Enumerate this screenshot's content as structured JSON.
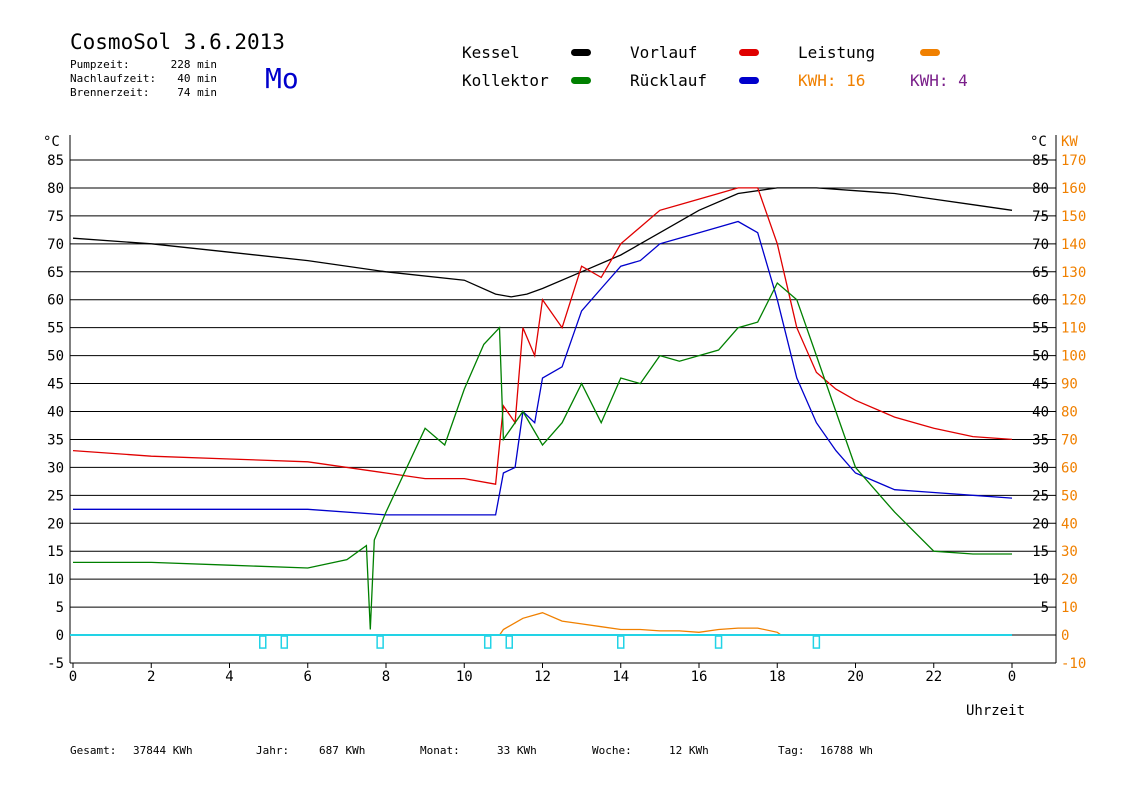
{
  "header": {
    "title": "CosmoSol 3.6.2013",
    "day": "Mo",
    "stats": [
      {
        "label": "Pumpzeit:",
        "value": "228 min"
      },
      {
        "label": "Nachlaufzeit:",
        "value": "40 min"
      },
      {
        "label": "Brennerzeit:",
        "value": "74 min"
      }
    ]
  },
  "legend": {
    "kessel": {
      "label": "Kessel",
      "color": "#000000"
    },
    "kollektor": {
      "label": "Kollektor",
      "color": "#008000"
    },
    "vorlauf": {
      "label": "Vorlauf",
      "color": "#e00000"
    },
    "ruecklauf": {
      "label": "Rücklauf",
      "color": "#0000cc"
    },
    "leistung": {
      "label": "Leistung",
      "color": "#f08000"
    },
    "kwh1": {
      "label": "KWH: 16",
      "color": "#f08000"
    },
    "kwh2": {
      "label": "KWH: 4",
      "color": "#7a1f8a"
    }
  },
  "footer": {
    "gesamt": {
      "label": "Gesamt:",
      "value": "37844 KWh"
    },
    "jahr": {
      "label": "Jahr:",
      "value": "687 KWh"
    },
    "monat": {
      "label": "Monat:",
      "value": "33 KWh"
    },
    "woche": {
      "label": "Woche:",
      "value": "12 KWh"
    },
    "tag": {
      "label": "Tag:",
      "value": "16788 Wh"
    }
  },
  "chart_data": {
    "type": "line",
    "xlabel": "Uhrzeit",
    "ylabel_left": "°C",
    "ylabel_right": "°C",
    "ylabel_power": "KW",
    "xlim": [
      0,
      24
    ],
    "ylim": [
      -5,
      85
    ],
    "ylim_power": [
      -10,
      170
    ],
    "x_ticks": [
      "0",
      "2",
      "4",
      "6",
      "8",
      "10",
      "12",
      "14",
      "16",
      "18",
      "20",
      "22",
      "0"
    ],
    "y_ticks_left": [
      "-5",
      "0",
      "5",
      "10",
      "15",
      "20",
      "25",
      "30",
      "35",
      "40",
      "45",
      "50",
      "55",
      "60",
      "65",
      "70",
      "75",
      "80",
      "85"
    ],
    "y_ticks_right": [
      "5",
      "10",
      "15",
      "20",
      "25",
      "30",
      "35",
      "40",
      "45",
      "50",
      "55",
      "60",
      "65",
      "70",
      "75",
      "80",
      "85"
    ],
    "y_ticks_power": [
      "-10",
      "0",
      "10",
      "20",
      "30",
      "40",
      "50",
      "60",
      "70",
      "80",
      "90",
      "100",
      "110",
      "120",
      "130",
      "140",
      "150",
      "160",
      "170"
    ],
    "grid": "horizontal",
    "series": [
      {
        "name": "Kessel",
        "color": "#000000",
        "x": [
          0,
          2,
          4,
          6,
          8,
          10,
          10.8,
          11.2,
          11.6,
          12,
          13,
          14,
          15,
          16,
          17,
          18,
          18.5,
          19,
          20,
          21,
          22,
          23,
          24
        ],
        "y": [
          71,
          70,
          68.5,
          67,
          65,
          63.5,
          61,
          60.5,
          61,
          62,
          65,
          68,
          72,
          76,
          79,
          80,
          80,
          80,
          79.5,
          79,
          78,
          77,
          76
        ]
      },
      {
        "name": "Vorlauf",
        "color": "#e00000",
        "x": [
          0,
          2,
          4,
          6,
          8,
          9,
          10,
          10.8,
          11,
          11.3,
          11.5,
          11.8,
          12,
          12.5,
          13,
          13.5,
          14,
          14.5,
          15,
          15.5,
          16,
          16.5,
          17,
          17.5,
          18,
          18.5,
          19,
          19.5,
          20,
          21,
          22,
          23,
          24
        ],
        "y": [
          33,
          32,
          31.5,
          31,
          29,
          28,
          28,
          27,
          41,
          38,
          55,
          50,
          60,
          55,
          66,
          64,
          70,
          73,
          76,
          77,
          78,
          79,
          80,
          80,
          70,
          55,
          47,
          44,
          42,
          39,
          37,
          35.5,
          35
        ]
      },
      {
        "name": "Rücklauf",
        "color": "#0000cc",
        "x": [
          0,
          2,
          4,
          6,
          8,
          9,
          10,
          10.8,
          11,
          11.3,
          11.5,
          11.8,
          12,
          12.5,
          13,
          13.5,
          14,
          14.5,
          15,
          15.5,
          16,
          16.5,
          17,
          17.5,
          18,
          18.5,
          19,
          19.5,
          20,
          21,
          22,
          23,
          24
        ],
        "y": [
          22.5,
          22.5,
          22.5,
          22.5,
          21.5,
          21.5,
          21.5,
          21.5,
          29,
          30,
          40,
          38,
          46,
          48,
          58,
          62,
          66,
          67,
          70,
          71,
          72,
          73,
          74,
          72,
          60,
          46,
          38,
          33,
          29,
          26,
          25.5,
          25,
          24.5
        ]
      },
      {
        "name": "Kollektor",
        "color": "#008000",
        "x": [
          0,
          2,
          4,
          6,
          7,
          7.5,
          7.6,
          7.7,
          8,
          9,
          9.5,
          10,
          10.5,
          10.9,
          11,
          11.5,
          12,
          12.5,
          13,
          13.5,
          14,
          14.5,
          15,
          15.5,
          16,
          16.5,
          17,
          17.5,
          18,
          18.5,
          19,
          19.5,
          20,
          21,
          22,
          23,
          24
        ],
        "y": [
          13,
          13,
          12.5,
          12,
          13.5,
          16,
          1,
          17,
          22,
          37,
          34,
          44,
          52,
          55,
          35,
          40,
          34,
          38,
          45,
          38,
          46,
          45,
          50,
          49,
          50,
          51,
          55,
          56,
          63,
          60,
          50,
          40,
          30,
          22,
          15,
          14.5,
          14.5
        ]
      },
      {
        "name": "Leistung",
        "color": "#f08000",
        "x": [
          10.9,
          11,
          11.5,
          12,
          12.5,
          13,
          13.5,
          14,
          14.5,
          15,
          15.5,
          16,
          16.5,
          17,
          17.5,
          18,
          18.1
        ],
        "y": [
          0,
          2,
          6,
          8,
          5,
          4,
          3,
          2,
          2,
          1.5,
          1.5,
          1,
          2,
          2.5,
          2.5,
          1,
          0
        ]
      }
    ]
  }
}
